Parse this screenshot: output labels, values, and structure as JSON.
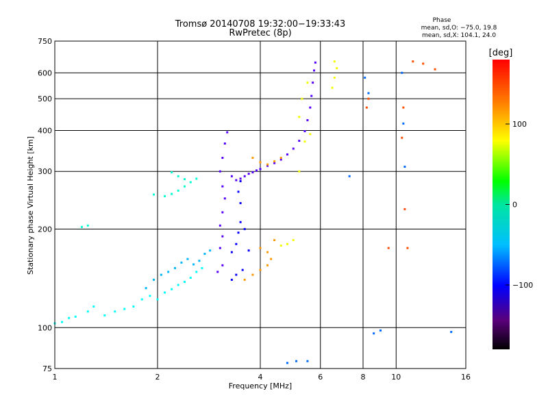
{
  "chart_data": {
    "type": "scatter",
    "title": "Tromsø 20140708 19:32:00−19:33:43",
    "subtitle": "RwPretec (8p)",
    "xlabel": "Frequency [MHz]",
    "ylabel": "Stationary phase Virtual Height [km]",
    "x_scale": "log",
    "y_scale": "log",
    "xlim": [
      1,
      16
    ],
    "ylim": [
      75,
      750
    ],
    "x_ticks": [
      "1",
      "2",
      "4",
      "6",
      "8",
      "10",
      "16"
    ],
    "y_ticks": [
      "75",
      "100",
      "200",
      "300",
      "400",
      "500",
      "600",
      "750"
    ],
    "grid": true,
    "phase_stats": {
      "title": "Phase",
      "line_o": "mean, sd,O: −75.0, 19.8",
      "line_x": "mean, sd,X: 104.1, 24.0"
    },
    "colorbar": {
      "label": "[deg]",
      "range": [
        -180,
        180
      ],
      "ticks": [
        "100",
        "0",
        "−100"
      ],
      "tick_values": [
        100,
        0,
        -100
      ],
      "colormap": "rainbow (black–purple–blue–cyan–green–yellow–orange–red)"
    },
    "series": [
      {
        "color_phase": -20,
        "points": [
          [
            1.0,
            103
          ],
          [
            1.05,
            104
          ],
          [
            1.1,
            107
          ],
          [
            1.15,
            108
          ],
          [
            1.25,
            112
          ],
          [
            1.3,
            116
          ],
          [
            1.4,
            109
          ],
          [
            1.5,
            112
          ],
          [
            1.6,
            114
          ],
          [
            1.7,
            116
          ],
          [
            1.8,
            122
          ],
          [
            1.9,
            125
          ],
          [
            2.0,
            122
          ],
          [
            2.1,
            128
          ],
          [
            2.2,
            131
          ],
          [
            2.3,
            135
          ],
          [
            2.4,
            138
          ],
          [
            2.5,
            142
          ],
          [
            2.6,
            148
          ],
          [
            2.7,
            152
          ]
        ]
      },
      {
        "color_phase": -40,
        "points": [
          [
            1.85,
            132
          ],
          [
            1.95,
            140
          ],
          [
            2.05,
            145
          ],
          [
            2.15,
            148
          ],
          [
            2.25,
            152
          ],
          [
            2.35,
            158
          ],
          [
            2.45,
            162
          ],
          [
            2.55,
            156
          ],
          [
            2.65,
            160
          ],
          [
            2.75,
            168
          ],
          [
            2.85,
            172
          ]
        ]
      },
      {
        "color_phase": -10,
        "points": [
          [
            1.2,
            203
          ],
          [
            1.25,
            205
          ],
          [
            1.95,
            255
          ],
          [
            2.1,
            252
          ],
          [
            2.2,
            256
          ],
          [
            2.3,
            262
          ],
          [
            2.4,
            270
          ],
          [
            2.5,
            278
          ],
          [
            2.6,
            285
          ],
          [
            2.2,
            298
          ],
          [
            2.3,
            290
          ],
          [
            2.4,
            284
          ]
        ]
      },
      {
        "color_phase": -110,
        "points": [
          [
            3.0,
            148
          ],
          [
            3.1,
            155
          ],
          [
            3.05,
            175
          ],
          [
            3.1,
            190
          ],
          [
            3.05,
            205
          ],
          [
            3.1,
            225
          ],
          [
            3.15,
            248
          ],
          [
            3.1,
            270
          ],
          [
            3.05,
            300
          ],
          [
            3.1,
            330
          ],
          [
            3.15,
            365
          ],
          [
            3.2,
            395
          ],
          [
            3.3,
            290
          ],
          [
            3.4,
            282
          ],
          [
            3.5,
            285
          ],
          [
            3.6,
            290
          ],
          [
            3.7,
            295
          ],
          [
            3.8,
            298
          ],
          [
            3.9,
            302
          ],
          [
            4.0,
            305
          ],
          [
            4.2,
            312
          ],
          [
            4.4,
            318
          ],
          [
            4.6,
            326
          ],
          [
            4.8,
            338
          ],
          [
            5.0,
            352
          ],
          [
            5.2,
            372
          ],
          [
            5.4,
            398
          ],
          [
            5.5,
            430
          ],
          [
            5.6,
            470
          ],
          [
            5.65,
            510
          ],
          [
            5.7,
            560
          ],
          [
            5.75,
            610
          ],
          [
            5.8,
            645
          ]
        ]
      },
      {
        "color_phase": -90,
        "points": [
          [
            3.3,
            170
          ],
          [
            3.4,
            180
          ],
          [
            3.45,
            195
          ],
          [
            3.5,
            210
          ],
          [
            3.5,
            240
          ],
          [
            3.45,
            260
          ],
          [
            3.5,
            280
          ],
          [
            3.6,
            200
          ],
          [
            3.7,
            172
          ],
          [
            3.55,
            150
          ],
          [
            3.4,
            145
          ],
          [
            3.3,
            140
          ]
        ]
      },
      {
        "color_phase": 140,
        "points": [
          [
            3.6,
            140
          ],
          [
            3.8,
            145
          ],
          [
            4.0,
            150
          ],
          [
            4.2,
            155
          ],
          [
            4.3,
            162
          ],
          [
            4.2,
            170
          ],
          [
            4.0,
            175
          ],
          [
            4.4,
            185
          ],
          [
            3.8,
            330
          ],
          [
            4.0,
            320
          ],
          [
            4.2,
            315
          ],
          [
            4.4,
            322
          ],
          [
            4.6,
            330
          ]
        ]
      },
      {
        "color_phase": 110,
        "points": [
          [
            4.6,
            178
          ],
          [
            4.8,
            180
          ],
          [
            5.0,
            185
          ],
          [
            5.2,
            300
          ],
          [
            5.4,
            370
          ],
          [
            5.6,
            390
          ],
          [
            5.2,
            440
          ],
          [
            5.3,
            500
          ],
          [
            5.5,
            560
          ],
          [
            6.5,
            540
          ],
          [
            6.6,
            580
          ],
          [
            6.7,
            620
          ],
          [
            6.6,
            650
          ]
        ]
      },
      {
        "color_phase": 160,
        "points": [
          [
            8.2,
            470
          ],
          [
            8.3,
            500
          ],
          [
            10.5,
            470
          ],
          [
            10.8,
            175
          ],
          [
            11.2,
            650
          ],
          [
            12.0,
            640
          ],
          [
            13.0,
            615
          ],
          [
            10.6,
            230
          ],
          [
            10.4,
            380
          ],
          [
            9.5,
            175
          ]
        ]
      },
      {
        "color_phase": -60,
        "points": [
          [
            8.1,
            580
          ],
          [
            8.3,
            520
          ],
          [
            9.0,
            98
          ],
          [
            8.6,
            96
          ],
          [
            10.4,
            600
          ],
          [
            10.5,
            420
          ],
          [
            10.6,
            310
          ],
          [
            7.3,
            290
          ],
          [
            4.8,
            78
          ],
          [
            5.1,
            79
          ],
          [
            5.5,
            79
          ],
          [
            14.5,
            97
          ]
        ]
      }
    ]
  }
}
